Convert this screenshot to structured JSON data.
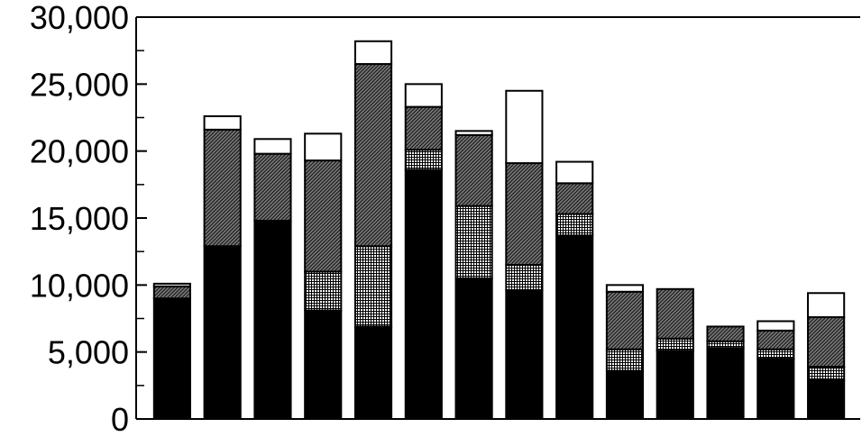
{
  "chart_data": {
    "type": "bar",
    "stacked": true,
    "title": "",
    "xlabel": "",
    "ylabel": "",
    "ylim": [
      0,
      30000
    ],
    "yticks": [
      0,
      5000,
      10000,
      15000,
      20000,
      25000,
      30000
    ],
    "ytick_labels": [
      "0",
      "5,000",
      "10,000",
      "15,000",
      "20,000",
      "25,000",
      "30,000"
    ],
    "minor_tick_step": 2500,
    "grid": false,
    "legend": "none",
    "bar_count": 14,
    "series": [
      {
        "fill": "solid-black",
        "values": [
          9000,
          12900,
          14800,
          8100,
          6900,
          18600,
          10500,
          9600,
          13700,
          3600,
          5100,
          5300,
          4500,
          2900
        ]
      },
      {
        "fill": "crosshatch",
        "values": [
          0,
          0,
          0,
          2900,
          6000,
          1500,
          5400,
          1900,
          1600,
          1600,
          900,
          500,
          700,
          1000
        ]
      },
      {
        "fill": "diagonal-hatch",
        "values": [
          900,
          8700,
          5000,
          8300,
          13600,
          3200,
          5300,
          7600,
          2300,
          4300,
          3700,
          1100,
          1400,
          3700
        ]
      },
      {
        "fill": "white",
        "values": [
          200,
          1000,
          1100,
          2000,
          1700,
          1700,
          300,
          5400,
          1600,
          500,
          0,
          0,
          700,
          1800
        ]
      }
    ]
  }
}
